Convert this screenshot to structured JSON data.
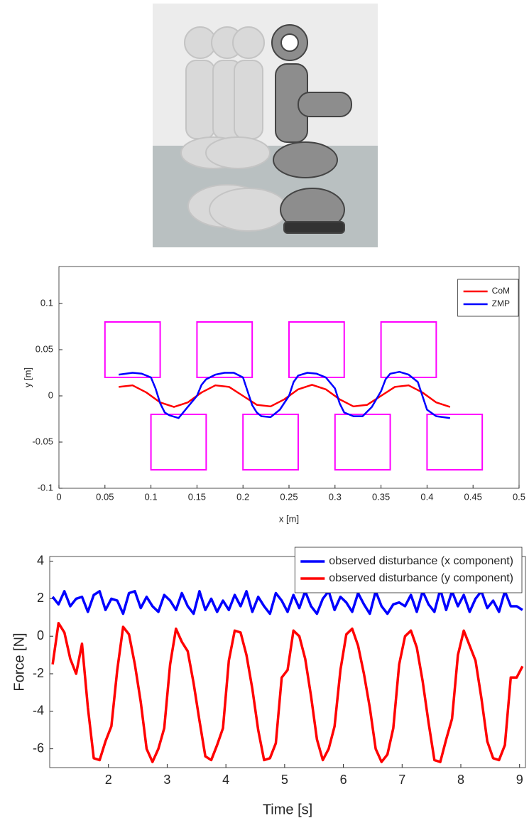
{
  "chart_data": [
    {
      "type": "line",
      "xlabel": "x [m]",
      "ylabel": "y [m]",
      "xlim": [
        0,
        0.5
      ],
      "ylim": [
        -0.1,
        0.14
      ],
      "xticks": [
        0,
        0.05,
        0.1,
        0.15,
        0.2,
        0.25,
        0.3,
        0.35,
        0.4,
        0.45,
        0.5
      ],
      "yticks": [
        -0.1,
        -0.05,
        0,
        0.05,
        0.1
      ],
      "legend": "upper right",
      "grid": false,
      "footprints": {
        "color": "#ff00ff",
        "rects": [
          [
            0.05,
            0.02,
            0.11,
            0.08
          ],
          [
            0.15,
            0.02,
            0.21,
            0.08
          ],
          [
            0.25,
            0.02,
            0.31,
            0.08
          ],
          [
            0.35,
            0.02,
            0.41,
            0.08
          ],
          [
            0.1,
            -0.08,
            0.16,
            -0.02
          ],
          [
            0.2,
            -0.08,
            0.26,
            -0.02
          ],
          [
            0.3,
            -0.08,
            0.36,
            -0.02
          ],
          [
            0.4,
            -0.08,
            0.46,
            -0.02
          ]
        ]
      },
      "series": [
        {
          "name": "CoM",
          "color": "#ff0000",
          "x": [
            0.065,
            0.08,
            0.095,
            0.11,
            0.125,
            0.14,
            0.155,
            0.17,
            0.185,
            0.2,
            0.215,
            0.23,
            0.245,
            0.26,
            0.275,
            0.29,
            0.305,
            0.32,
            0.335,
            0.35,
            0.365,
            0.38,
            0.395,
            0.41,
            0.425
          ],
          "values": [
            0.0097,
            0.0114,
            0.0037,
            -0.0071,
            -0.012,
            -0.0071,
            0.0037,
            0.0114,
            0.0097,
            0,
            -0.0097,
            -0.0114,
            -0.0037,
            0.0071,
            0.012,
            0.0071,
            -0.0037,
            -0.0114,
            -0.0097,
            0,
            0.0097,
            0.0114,
            0.0037,
            -0.0071,
            -0.012
          ]
        },
        {
          "name": "ZMP",
          "color": "#0000ff",
          "x": [
            0.065,
            0.08,
            0.09,
            0.1,
            0.105,
            0.11,
            0.115,
            0.12,
            0.13,
            0.14,
            0.15,
            0.155,
            0.16,
            0.17,
            0.18,
            0.19,
            0.2,
            0.205,
            0.21,
            0.215,
            0.22,
            0.23,
            0.24,
            0.25,
            0.255,
            0.26,
            0.27,
            0.28,
            0.29,
            0.3,
            0.305,
            0.31,
            0.32,
            0.33,
            0.34,
            0.35,
            0.355,
            0.36,
            0.37,
            0.38,
            0.39,
            0.395,
            0.4,
            0.41,
            0.425
          ],
          "values": [
            0.023,
            0.025,
            0.024,
            0.02,
            0.008,
            -0.008,
            -0.018,
            -0.021,
            -0.024,
            -0.012,
            0,
            0.012,
            0.018,
            0.023,
            0.025,
            0.025,
            0.02,
            0.005,
            -0.01,
            -0.018,
            -0.022,
            -0.023,
            -0.015,
            0,
            0.015,
            0.022,
            0.025,
            0.024,
            0.02,
            0.008,
            -0.008,
            -0.018,
            -0.022,
            -0.022,
            -0.012,
            0.005,
            0.018,
            0.024,
            0.026,
            0.023,
            0.015,
            0,
            -0.015,
            -0.022,
            -0.024
          ]
        }
      ]
    },
    {
      "type": "line",
      "xlabel": "Time [s]",
      "ylabel": "Force [N]",
      "xlim": [
        1,
        9.1
      ],
      "ylim": [
        -7,
        4.25
      ],
      "xticks": [
        2,
        3,
        4,
        5,
        6,
        7,
        8,
        9
      ],
      "yticks": [
        -6,
        -4,
        -2,
        0,
        2,
        4
      ],
      "legend": "upper right",
      "grid": false,
      "x": [
        1.05,
        1.15,
        1.25,
        1.35,
        1.45,
        1.55,
        1.65,
        1.75,
        1.85,
        1.95,
        2.05,
        2.15,
        2.25,
        2.35,
        2.45,
        2.55,
        2.65,
        2.75,
        2.85,
        2.95,
        3.05,
        3.15,
        3.25,
        3.35,
        3.45,
        3.55,
        3.65,
        3.75,
        3.85,
        3.95,
        4.05,
        4.15,
        4.25,
        4.35,
        4.45,
        4.55,
        4.65,
        4.75,
        4.85,
        4.95,
        5.05,
        5.15,
        5.25,
        5.35,
        5.45,
        5.55,
        5.65,
        5.75,
        5.85,
        5.95,
        6.05,
        6.15,
        6.25,
        6.35,
        6.45,
        6.55,
        6.65,
        6.75,
        6.85,
        6.95,
        7.05,
        7.15,
        7.25,
        7.35,
        7.45,
        7.55,
        7.65,
        7.75,
        7.85,
        7.95,
        8.05,
        8.15,
        8.25,
        8.35,
        8.45,
        8.55,
        8.65,
        8.75,
        8.85,
        8.95,
        9.05
      ],
      "series": [
        {
          "name": "observed disturbance (x component)",
          "color": "#0000ff",
          "values": [
            2.1,
            1.7,
            2.4,
            1.6,
            2.0,
            2.1,
            1.3,
            2.2,
            2.4,
            1.4,
            2.0,
            1.9,
            1.2,
            2.3,
            2.4,
            1.5,
            2.1,
            1.6,
            1.3,
            2.2,
            1.9,
            1.4,
            2.3,
            1.6,
            1.2,
            2.4,
            1.4,
            2.0,
            1.3,
            1.9,
            1.4,
            2.2,
            1.6,
            2.4,
            1.3,
            2.1,
            1.6,
            1.2,
            2.3,
            1.9,
            1.3,
            2.2,
            1.5,
            2.4,
            1.6,
            1.2,
            2.0,
            2.4,
            1.4,
            2.1,
            1.8,
            1.3,
            2.3,
            1.7,
            1.2,
            2.4,
            1.6,
            1.2,
            1.7,
            1.8,
            1.6,
            2.2,
            1.3,
            2.4,
            1.7,
            1.3,
            2.5,
            1.4,
            2.4,
            1.6,
            2.2,
            1.3,
            2.0,
            2.4,
            1.5,
            1.9,
            1.3,
            2.4,
            1.6,
            1.6,
            1.4
          ]
        },
        {
          "name": "observed disturbance (y component)",
          "color": "#ff0000",
          "values": [
            -1.5,
            0.7,
            0.2,
            -1.2,
            -2.0,
            -0.4,
            -3.8,
            -6.5,
            -6.6,
            -5.6,
            -4.8,
            -1.8,
            0.5,
            0.1,
            -1.5,
            -3.5,
            -6.0,
            -6.7,
            -6.0,
            -4.9,
            -1.5,
            0.4,
            -0.3,
            -0.8,
            -2.5,
            -4.5,
            -6.4,
            -6.6,
            -5.8,
            -4.9,
            -1.3,
            0.3,
            0.2,
            -1.0,
            -2.8,
            -5.0,
            -6.6,
            -6.5,
            -5.7,
            -2.2,
            -1.8,
            0.3,
            0.0,
            -1.2,
            -3.2,
            -5.5,
            -6.6,
            -6.0,
            -4.8,
            -1.8,
            0.1,
            0.4,
            -0.5,
            -2.0,
            -3.8,
            -6.0,
            -6.7,
            -6.3,
            -4.9,
            -1.5,
            0.0,
            0.3,
            -0.6,
            -2.4,
            -4.6,
            -6.6,
            -6.7,
            -5.5,
            -4.4,
            -1.0,
            0.3,
            -0.5,
            -1.3,
            -3.3,
            -5.6,
            -6.5,
            -6.6,
            -5.8,
            -2.2,
            -2.2,
            -1.6
          ]
        }
      ]
    }
  ]
}
